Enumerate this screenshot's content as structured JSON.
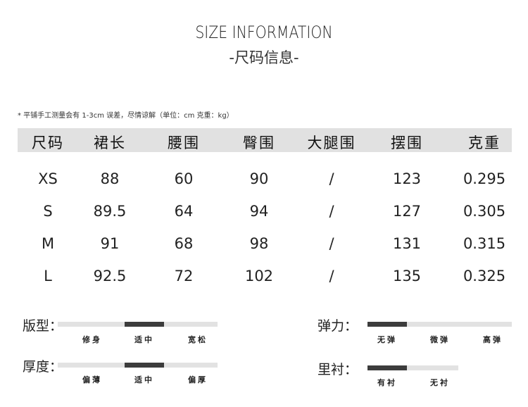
{
  "title": "SIZE INFORMATION",
  "subtitle": "-尺码信息-",
  "note": "* 平铺手工测量会有 1-3cm 误差，尽情谅解（单位：cm 克重：kg）",
  "table": {
    "headers": [
      "尺码",
      "裙长",
      "腰围",
      "臀围",
      "大腿围",
      "摆围",
      "克重"
    ],
    "rows": [
      [
        "XS",
        "88",
        "60",
        "90",
        "/",
        "123",
        "0.295"
      ],
      [
        "S",
        "89.5",
        "64",
        "94",
        "/",
        "127",
        "0.305"
      ],
      [
        "M",
        "91",
        "68",
        "98",
        "/",
        "131",
        "0.315"
      ],
      [
        "L",
        "92.5",
        "72",
        "102",
        "/",
        "135",
        "0.325"
      ]
    ]
  },
  "attributes": [
    {
      "label": "版型：",
      "options": [
        "修身",
        "适中",
        "宽松"
      ],
      "selected": "适中",
      "selected_index": 1
    },
    {
      "label": "厚度：",
      "options": [
        "偏薄",
        "适中",
        "偏厚"
      ],
      "selected": "适中",
      "selected_index": 1
    },
    {
      "label": "弹力：",
      "options": [
        "无弹",
        "微弹",
        "高弹"
      ],
      "selected": "无弹",
      "selected_index": 0
    },
    {
      "label": "里衬：",
      "options": [
        "有衬",
        "无衬"
      ],
      "selected": "有衬",
      "selected_index": 0
    }
  ],
  "colors": {
    "header_bg": "#e1e1e1",
    "track": "#e2e2e2",
    "indicator": "#3c3c3c"
  }
}
